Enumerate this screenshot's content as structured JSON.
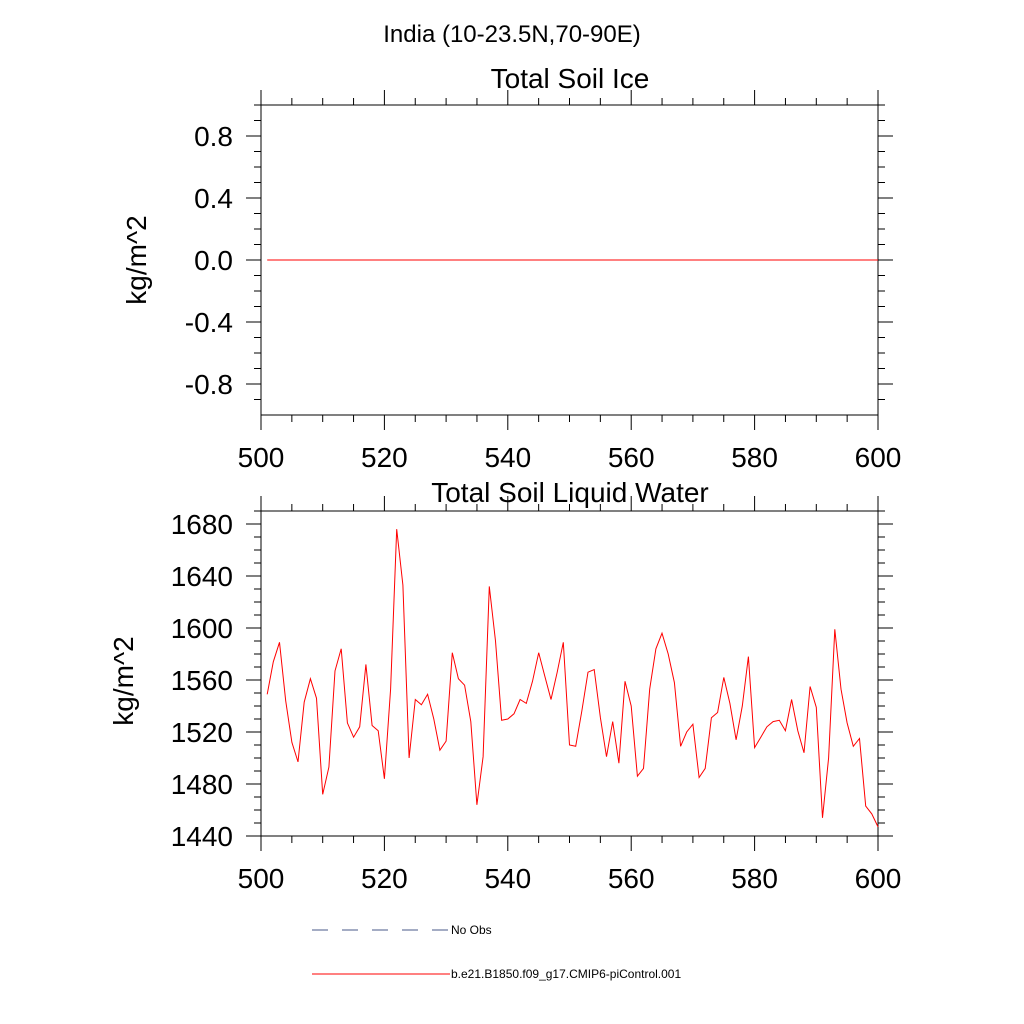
{
  "figure": {
    "title": "India (10-23.5N,70-90E)"
  },
  "chart_data": [
    {
      "type": "line",
      "title": "Total Soil Ice",
      "xlabel": "",
      "ylabel": "kg/m^2",
      "xlim": [
        500,
        600
      ],
      "ylim": [
        -1.0,
        1.0
      ],
      "xticks": [
        500,
        520,
        540,
        560,
        580,
        600
      ],
      "xtick_labels": [
        "500",
        "520",
        "540",
        "560",
        "580",
        "600"
      ],
      "yticks": [
        -0.8,
        -0.4,
        0.0,
        0.4,
        0.8
      ],
      "ytick_labels": [
        "-0.8",
        "-0.4",
        "0.0",
        "0.4",
        "0.8"
      ],
      "grid": false,
      "series": [
        {
          "name": "b.e21.B1850.f09_g17.CMIP6-piControl.001",
          "color": "#ff0000",
          "x_start": 501,
          "x_end": 600,
          "values": [
            0.0,
            0.0
          ]
        }
      ]
    },
    {
      "type": "line",
      "title": "Total Soil Liquid Water",
      "xlabel": "",
      "ylabel": "kg/m^2",
      "xlim": [
        500,
        600
      ],
      "ylim": [
        1440,
        1690
      ],
      "xticks": [
        500,
        520,
        540,
        560,
        580,
        600
      ],
      "xtick_labels": [
        "500",
        "520",
        "540",
        "560",
        "580",
        "600"
      ],
      "yticks": [
        1440,
        1480,
        1520,
        1560,
        1600,
        1640,
        1680
      ],
      "ytick_labels": [
        "1440",
        "1480",
        "1520",
        "1560",
        "1600",
        "1640",
        "1680"
      ],
      "grid": false,
      "series": [
        {
          "name": "b.e21.B1850.f09_g17.CMIP6-piControl.001",
          "color": "#ff0000",
          "x_start": 501,
          "values": [
            1549,
            1574,
            1589,
            1544,
            1512,
            1497,
            1543,
            1561,
            1546,
            1472,
            1493,
            1567,
            1584,
            1527,
            1516,
            1524,
            1572,
            1525,
            1521,
            1484,
            1553,
            1676,
            1633,
            1500,
            1545,
            1541,
            1549,
            1530,
            1506,
            1513,
            1581,
            1561,
            1556,
            1528,
            1464,
            1501,
            1632,
            1590,
            1529,
            1530,
            1534,
            1545,
            1542,
            1559,
            1581,
            1563,
            1545,
            1566,
            1589,
            1510,
            1509,
            1536,
            1566,
            1568,
            1531,
            1501,
            1528,
            1496,
            1559,
            1540,
            1486,
            1492,
            1553,
            1584,
            1596,
            1580,
            1558,
            1509,
            1520,
            1526,
            1485,
            1492,
            1531,
            1535,
            1562,
            1542,
            1514,
            1540,
            1578,
            1508,
            1516,
            1524,
            1528,
            1529,
            1521,
            1545,
            1521,
            1504,
            1555,
            1539,
            1454,
            1500,
            1599,
            1553,
            1527,
            1509,
            1515,
            1463,
            1457,
            1447
          ]
        }
      ]
    }
  ],
  "legend": {
    "entries": [
      {
        "label": "No Obs",
        "color": "#4a5a8a",
        "style": "dashed"
      },
      {
        "label": "b.e21.B1850.f09_g17.CMIP6-piControl.001",
        "color": "#ff0000",
        "style": "solid"
      }
    ]
  }
}
